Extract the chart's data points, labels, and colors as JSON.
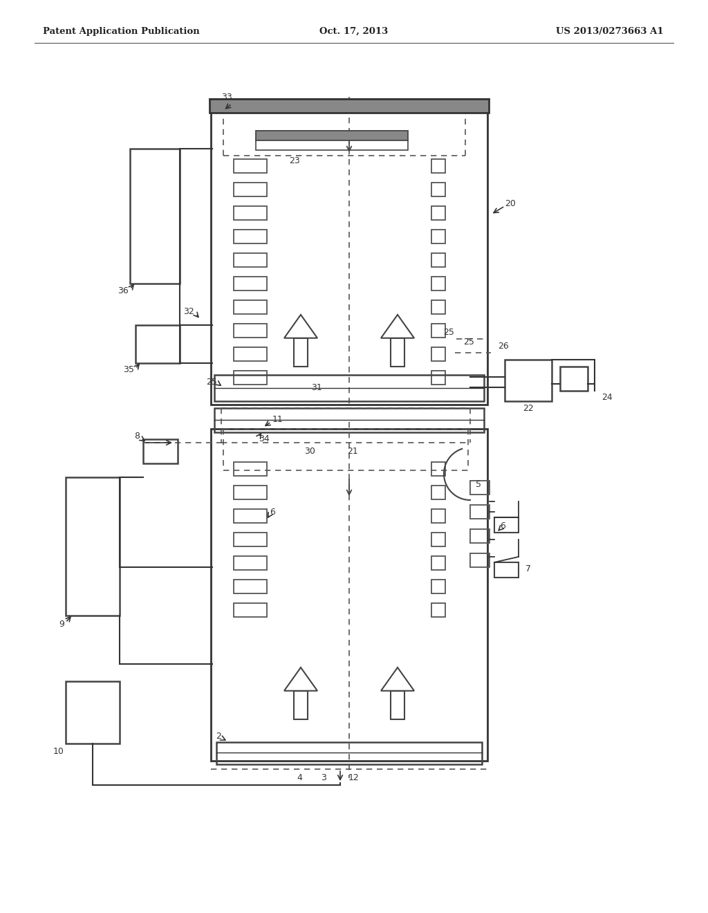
{
  "bg_color": "#ffffff",
  "header_left": "Patent Application Publication",
  "header_center": "Oct. 17, 2013",
  "header_right": "US 2013/0273663 A1",
  "fig_width": 10.24,
  "fig_height": 13.2,
  "dpi": 100
}
